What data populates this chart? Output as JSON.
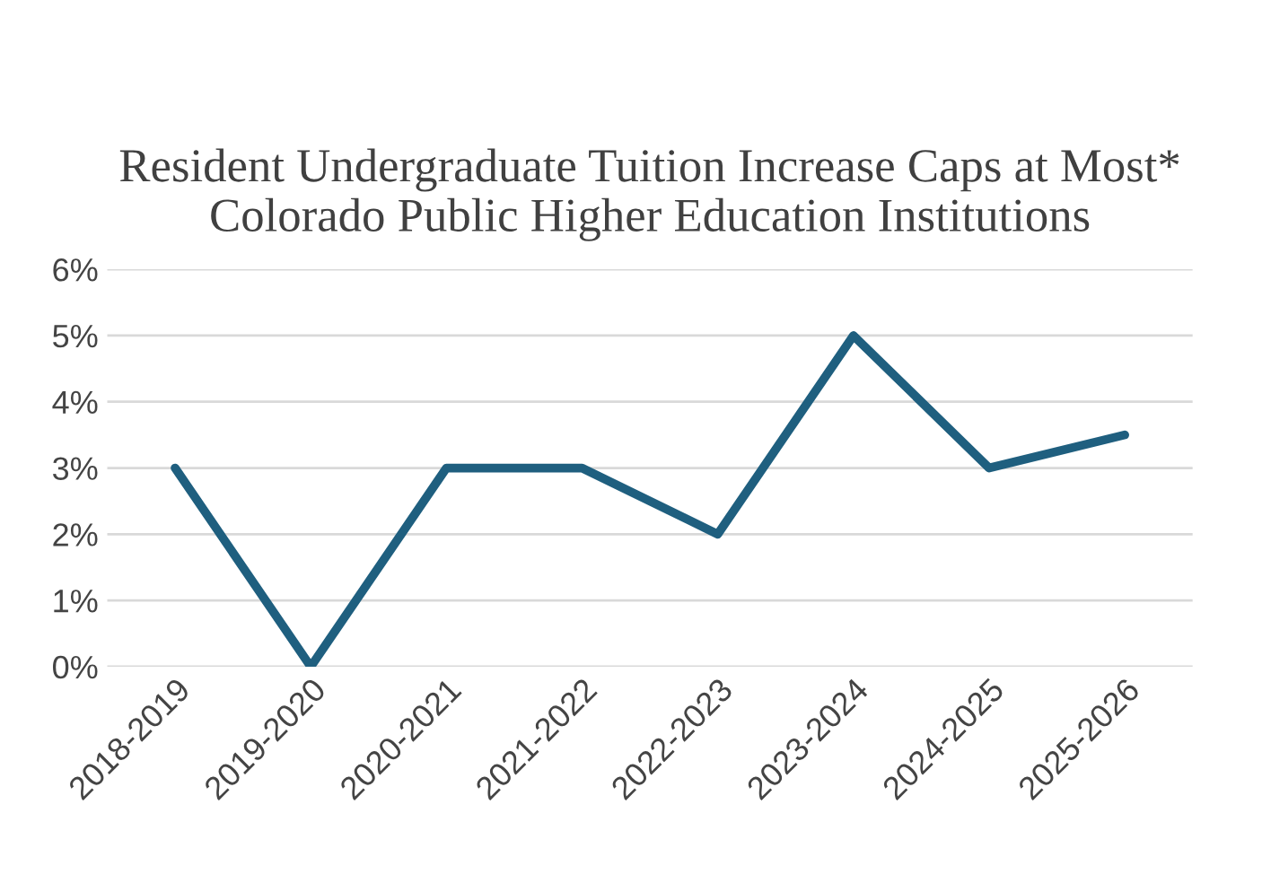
{
  "chart_data": {
    "type": "line",
    "title": "Resident Undergraduate Tuition Increase Caps at Most* Colorado Public Higher Education Institutions",
    "categories": [
      "2018-2019",
      "2019-2020",
      "2020-2021",
      "2021-2022",
      "2022-2023",
      "2023-2024",
      "2024-2025",
      "2025-2026"
    ],
    "series": [
      {
        "color": "#1f5f7f",
        "values": [
          3,
          0,
          3,
          3,
          2,
          5,
          3,
          3.5
        ]
      }
    ],
    "ylim": [
      0,
      6
    ],
    "yticks": [
      {
        "value": 0,
        "label": "0%"
      },
      {
        "value": 1,
        "label": "1%"
      },
      {
        "value": 2,
        "label": "2%"
      },
      {
        "value": 3,
        "label": "3%"
      },
      {
        "value": 4,
        "label": "4%"
      },
      {
        "value": 5,
        "label": "5%"
      },
      {
        "value": 6,
        "label": "6%"
      }
    ],
    "grid": "y",
    "marker": "none",
    "line_style": "solid",
    "legend": false
  }
}
